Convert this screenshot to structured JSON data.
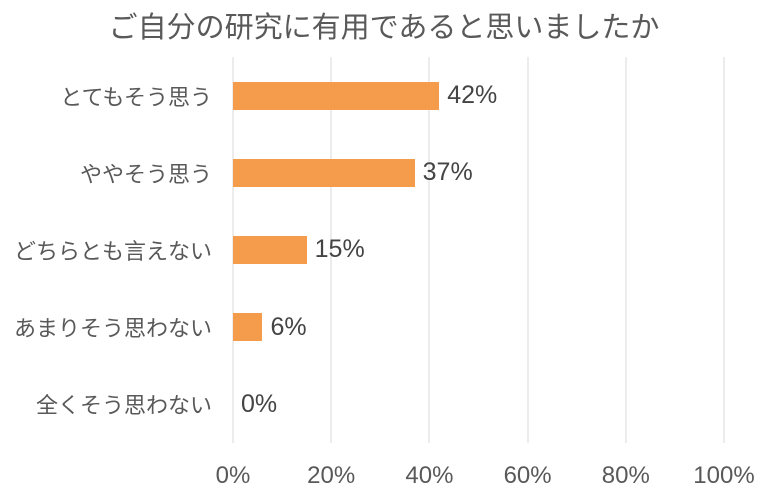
{
  "chart_data": {
    "type": "bar",
    "orientation": "horizontal",
    "title": "ご自分の研究に有用であると思いましたか",
    "categories": [
      "とてもそう思う",
      "ややそう思う",
      "どちらとも言えない",
      "あまりそう思わない",
      "全くそう思わない"
    ],
    "values": [
      42,
      37,
      15,
      6,
      0
    ],
    "data_labels": [
      "42%",
      "37%",
      "15%",
      "6%",
      "0%"
    ],
    "x_tick_labels": [
      "0%",
      "20%",
      "40%",
      "60%",
      "80%",
      "100%"
    ],
    "x_tick_values": [
      0,
      20,
      40,
      60,
      80,
      100
    ],
    "xlim": [
      0,
      100
    ],
    "grid": true,
    "legend": false,
    "colors": {
      "bar": "#F59C4C",
      "gridline": "#D9D9D9",
      "title_text": "#595959",
      "axis_text": "#595959",
      "data_label_text": "#444444",
      "background": "#FFFFFF"
    }
  }
}
